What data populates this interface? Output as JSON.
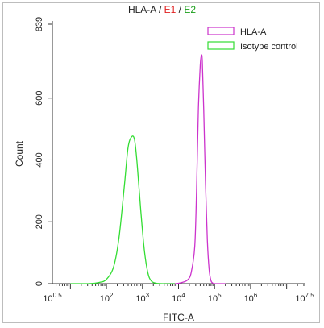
{
  "chart_data": {
    "type": "line",
    "title": "HLA-A / E1 / E2",
    "title_parts": [
      {
        "text": "HLA-A",
        "color": "#222222"
      },
      {
        "text": " / ",
        "color": "#222222"
      },
      {
        "text": "E1",
        "color": "#e02020"
      },
      {
        "text": " / ",
        "color": "#222222"
      },
      {
        "text": "E2",
        "color": "#1a9e1a"
      }
    ],
    "xlabel": "FITC-A",
    "ylabel": "Count",
    "x_scale": "log10",
    "xlim": [
      0.5,
      7.5
    ],
    "ylim": [
      0,
      839
    ],
    "x_ticks": [
      {
        "base": "10",
        "exp": "0.5",
        "value": 0.5
      },
      {
        "base": "10",
        "exp": "2",
        "value": 2
      },
      {
        "base": "10",
        "exp": "3",
        "value": 3
      },
      {
        "base": "10",
        "exp": "4",
        "value": 4
      },
      {
        "base": "10",
        "exp": "5",
        "value": 5
      },
      {
        "base": "10",
        "exp": "6",
        "value": 6
      },
      {
        "base": "10",
        "exp": "7.5",
        "value": 7.5
      }
    ],
    "y_ticks": [
      {
        "label": "0",
        "value": 0
      },
      {
        "label": "200",
        "value": 200
      },
      {
        "label": "400",
        "value": 400
      },
      {
        "label": "600",
        "value": 600
      },
      {
        "label": "839",
        "value": 839
      }
    ],
    "legend_position": "top-right",
    "series": [
      {
        "name": "HLA-A",
        "color": "#cc33cc",
        "points": [
          [
            3.6,
            0
          ],
          [
            3.9,
            0
          ],
          [
            4.1,
            4
          ],
          [
            4.25,
            12
          ],
          [
            4.35,
            35
          ],
          [
            4.45,
            120
          ],
          [
            4.5,
            300
          ],
          [
            4.55,
            560
          ],
          [
            4.6,
            700
          ],
          [
            4.63,
            735
          ],
          [
            4.66,
            720
          ],
          [
            4.7,
            560
          ],
          [
            4.75,
            320
          ],
          [
            4.8,
            140
          ],
          [
            4.85,
            45
          ],
          [
            4.9,
            10
          ],
          [
            4.95,
            2
          ],
          [
            5.0,
            0
          ],
          [
            5.3,
            0
          ]
        ]
      },
      {
        "name": "Isotype control",
        "color": "#33dd33",
        "points": [
          [
            1.0,
            0
          ],
          [
            1.5,
            0
          ],
          [
            1.8,
            4
          ],
          [
            2.0,
            14
          ],
          [
            2.2,
            55
          ],
          [
            2.35,
            150
          ],
          [
            2.5,
            320
          ],
          [
            2.6,
            440
          ],
          [
            2.7,
            475
          ],
          [
            2.78,
            465
          ],
          [
            2.85,
            390
          ],
          [
            2.95,
            240
          ],
          [
            3.05,
            110
          ],
          [
            3.15,
            35
          ],
          [
            3.25,
            8
          ],
          [
            3.4,
            1
          ],
          [
            3.6,
            0
          ],
          [
            3.9,
            0
          ]
        ]
      }
    ]
  }
}
